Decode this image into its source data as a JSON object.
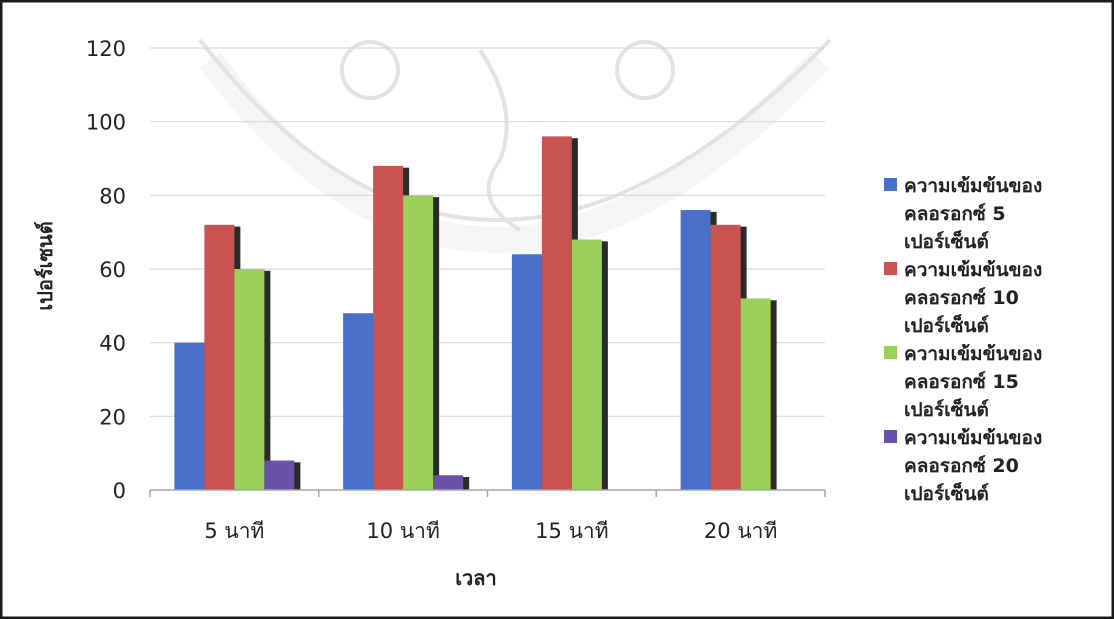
{
  "colors": {
    "background": "#ffffff",
    "border": "#1a1a1a",
    "gridline": "#d9d9d9",
    "axis": "#a6a6a6",
    "bar_shadow": "#2b2b2b",
    "watermark": "#b0b0b0"
  },
  "chart_data": {
    "type": "bar",
    "title": "",
    "xlabel": "เวลา",
    "ylabel": "เปอร์เซนต์",
    "ylim": [
      0,
      120
    ],
    "yticks": [
      0,
      20,
      40,
      60,
      80,
      100,
      120
    ],
    "grid": true,
    "legend_position": "right",
    "categories": [
      "5 นาที",
      "10 นาที",
      "15 นาที",
      "20 นาที"
    ],
    "series": [
      {
        "name": "ความเข้มข้นของคลอรอกซ์ 5 เปอร์เซ็นต์",
        "legend_lines": [
          "ความเข้มข้นของ",
          "คลอรอกซ์ 5",
          "เปอร์เซ็นต์"
        ],
        "color": "#4a6fc9",
        "values": [
          40,
          48,
          64,
          76
        ]
      },
      {
        "name": "ความเข้มข้นของคลอรอกซ์ 10 เปอร์เซ็นต์",
        "legend_lines": [
          "ความเข้มข้นของ",
          "คลอรอกซ์ 10",
          "เปอร์เซ็นต์"
        ],
        "color": "#c9544f",
        "values": [
          72,
          88,
          96,
          72
        ]
      },
      {
        "name": "ความเข้มข้นของคลอรอกซ์ 15 เปอร์เซ็นต์",
        "legend_lines": [
          "ความเข้มข้นของ",
          "คลอรอกซ์ 15",
          "เปอร์เซ็นต์"
        ],
        "color": "#9bd05a",
        "values": [
          60,
          80,
          68,
          52
        ]
      },
      {
        "name": "ความเข้มข้นของคลอรอกซ์ 20 เปอร์เซ็นต์",
        "legend_lines": [
          "ความเข้มข้นของ",
          "คลอรอกซ์ 20",
          "เปอร์เซ็นต์"
        ],
        "color": "#6b52a8",
        "values": [
          8,
          4,
          0,
          0
        ]
      }
    ]
  }
}
